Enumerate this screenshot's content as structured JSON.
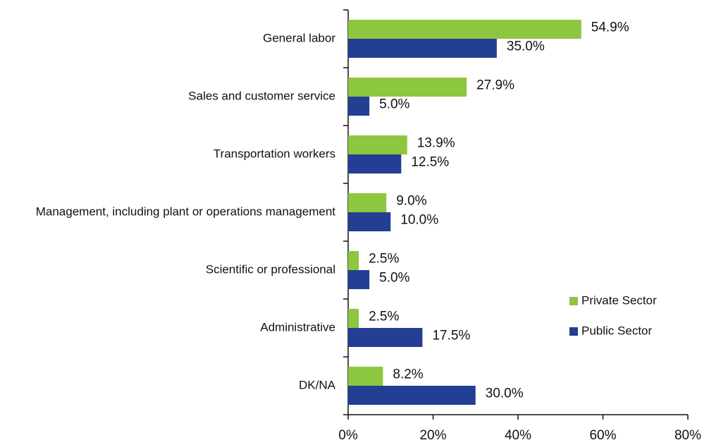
{
  "chart_data": {
    "type": "hbar",
    "categories": [
      "General labor",
      "Sales and customer service",
      "Transportation workers",
      "Management, including plant or operations management",
      "Scientific or professional",
      "Administrative",
      "DK/NA"
    ],
    "series": [
      {
        "name": "Private Sector",
        "color": "#8dc63f",
        "values": [
          54.9,
          27.9,
          13.9,
          9.0,
          2.5,
          2.5,
          8.2
        ],
        "value_labels": [
          "54.9%",
          "27.9%",
          "13.9%",
          "9.0%",
          "2.5%",
          "2.5%",
          "8.2%"
        ]
      },
      {
        "name": "Public Sector",
        "color": "#233f93",
        "values": [
          35.0,
          5.0,
          12.5,
          10.0,
          5.0,
          17.5,
          30.0
        ],
        "value_labels": [
          "35.0%",
          "5.0%",
          "12.5%",
          "10.0%",
          "5.0%",
          "17.5%",
          "30.0%"
        ]
      }
    ],
    "xlim": [
      0,
      80
    ],
    "xticks": [
      {
        "value": 0,
        "label": "0%"
      },
      {
        "value": 20,
        "label": "20%"
      },
      {
        "value": 40,
        "label": "40%"
      },
      {
        "value": 60,
        "label": "60%"
      },
      {
        "value": 80,
        "label": "80%"
      }
    ],
    "legend": "right",
    "grid": false
  }
}
